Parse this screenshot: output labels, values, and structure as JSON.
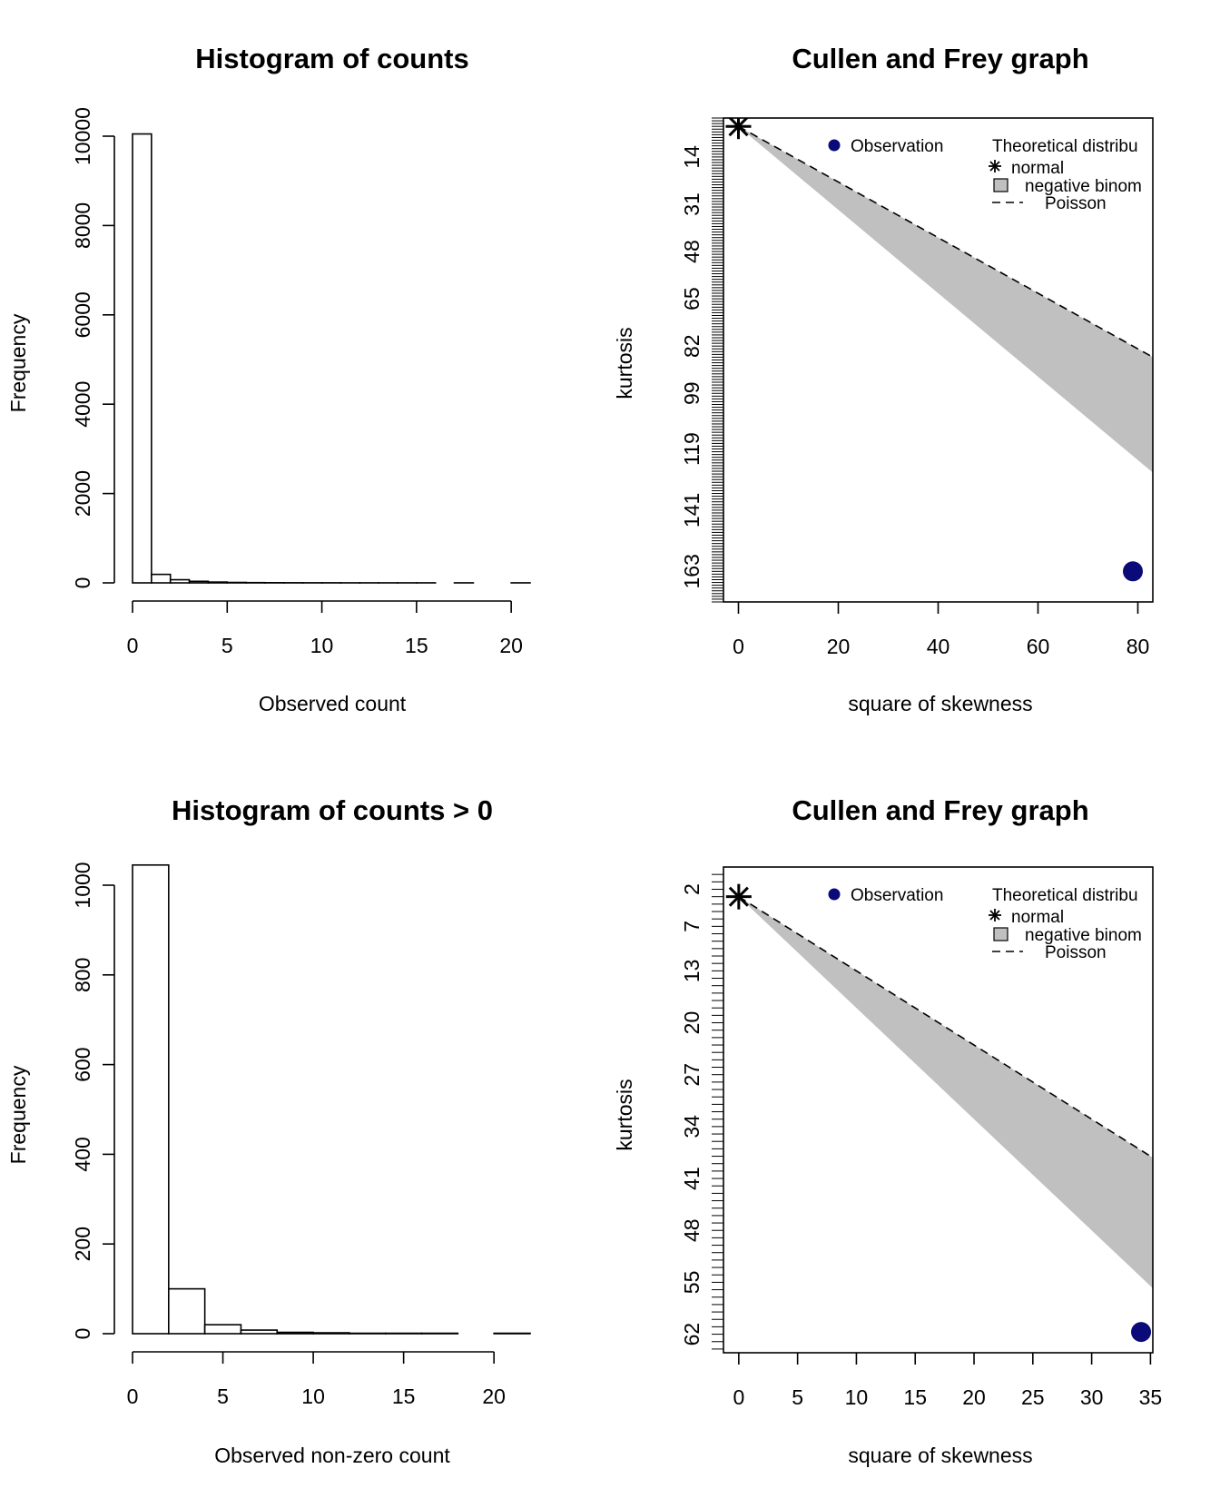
{
  "chart_data": [
    {
      "type": "bar",
      "title": "Histogram of counts",
      "xlabel": "Observed count",
      "ylabel": "Frequency",
      "xlim": [
        0,
        21
      ],
      "ylim": [
        0,
        10000
      ],
      "xticks": [
        0,
        5,
        10,
        15,
        20
      ],
      "yticks": [
        0,
        2000,
        4000,
        6000,
        8000,
        10000
      ],
      "bins": [
        {
          "x0": 0,
          "x1": 1,
          "count": 10050
        },
        {
          "x0": 1,
          "x1": 2,
          "count": 190
        },
        {
          "x0": 2,
          "x1": 3,
          "count": 70
        },
        {
          "x0": 3,
          "x1": 4,
          "count": 35
        },
        {
          "x0": 4,
          "x1": 5,
          "count": 18
        },
        {
          "x0": 5,
          "x1": 6,
          "count": 10
        },
        {
          "x0": 6,
          "x1": 7,
          "count": 6
        },
        {
          "x0": 7,
          "x1": 8,
          "count": 4
        },
        {
          "x0": 8,
          "x1": 9,
          "count": 3
        },
        {
          "x0": 9,
          "x1": 10,
          "count": 2
        },
        {
          "x0": 10,
          "x1": 11,
          "count": 2
        },
        {
          "x0": 11,
          "x1": 12,
          "count": 1
        },
        {
          "x0": 12,
          "x1": 13,
          "count": 1
        },
        {
          "x0": 13,
          "x1": 14,
          "count": 1
        },
        {
          "x0": 14,
          "x1": 15,
          "count": 1
        },
        {
          "x0": 15,
          "x1": 16,
          "count": 1
        },
        {
          "x0": 16,
          "x1": 17,
          "count": 0
        },
        {
          "x0": 17,
          "x1": 18,
          "count": 1
        },
        {
          "x0": 18,
          "x1": 19,
          "count": 0
        },
        {
          "x0": 19,
          "x1": 20,
          "count": 0
        },
        {
          "x0": 20,
          "x1": 21,
          "count": 1
        }
      ],
      "grid": false
    },
    {
      "type": "scatter",
      "title": "Cullen and Frey graph",
      "xlabel": "square of skewness",
      "ylabel": "kurtosis",
      "xlim": [
        -3,
        83
      ],
      "ylim": [
        174,
        0
      ],
      "xticks": [
        0,
        20,
        40,
        60,
        80
      ],
      "yticks": [
        14,
        31,
        48,
        65,
        82,
        99,
        119,
        141,
        163
      ],
      "minor_tick_step": 1,
      "legend": {
        "placement": "top-right",
        "observation_label": "Observation",
        "theoretical_title": "Theoretical distribu",
        "normal_label": "normal",
        "negbinom_label": "negative binom",
        "poisson_label": "Poisson"
      },
      "observation": {
        "x": 79,
        "y": 163,
        "color": "#0a0a78"
      },
      "normal_point": {
        "x": 0,
        "y": 3
      },
      "poisson_line": {
        "x0": 0,
        "y0": 3,
        "slope": 1
      },
      "negbinom_band": {
        "lower_slope": 1,
        "upper_slope": 1.5
      },
      "band_color": "#c0c0c0",
      "grid": false
    },
    {
      "type": "bar",
      "title": "Histogram of counts > 0",
      "xlabel": "Observed non-zero count",
      "ylabel": "Frequency",
      "xlim": [
        0,
        22
      ],
      "ylim": [
        0,
        1000
      ],
      "xticks": [
        0,
        5,
        10,
        15,
        20
      ],
      "yticks": [
        0,
        200,
        400,
        600,
        800,
        1000
      ],
      "bins": [
        {
          "x0": 0,
          "x1": 2,
          "count": 1045
        },
        {
          "x0": 2,
          "x1": 4,
          "count": 100
        },
        {
          "x0": 4,
          "x1": 6,
          "count": 20
        },
        {
          "x0": 6,
          "x1": 8,
          "count": 8
        },
        {
          "x0": 8,
          "x1": 10,
          "count": 3
        },
        {
          "x0": 10,
          "x1": 12,
          "count": 2
        },
        {
          "x0": 12,
          "x1": 14,
          "count": 1
        },
        {
          "x0": 14,
          "x1": 16,
          "count": 1
        },
        {
          "x0": 16,
          "x1": 18,
          "count": 1
        },
        {
          "x0": 18,
          "x1": 20,
          "count": 0
        },
        {
          "x0": 20,
          "x1": 22,
          "count": 1
        }
      ],
      "grid": false
    },
    {
      "type": "scatter",
      "title": "Cullen and Frey graph",
      "xlabel": "square of skewness",
      "ylabel": "kurtosis",
      "xlim": [
        -1.3,
        35.2
      ],
      "ylim": [
        64.5,
        -1
      ],
      "xticks": [
        0,
        5,
        10,
        15,
        20,
        25,
        30,
        35
      ],
      "yticks": [
        2,
        7,
        13,
        20,
        27,
        34,
        41,
        48,
        55,
        62
      ],
      "minor_tick_step": 1,
      "legend": {
        "placement": "top-right",
        "observation_label": "Observation",
        "theoretical_title": "Theoretical distribu",
        "normal_label": "normal",
        "negbinom_label": "negative binom",
        "poisson_label": "Poisson"
      },
      "observation": {
        "x": 34.2,
        "y": 61.7,
        "color": "#0a0a78"
      },
      "normal_point": {
        "x": 0,
        "y": 3
      },
      "poisson_line": {
        "x0": 0,
        "y0": 3,
        "slope": 1
      },
      "negbinom_band": {
        "lower_slope": 1,
        "upper_slope": 1.5
      },
      "band_color": "#c0c0c0",
      "grid": false
    }
  ]
}
